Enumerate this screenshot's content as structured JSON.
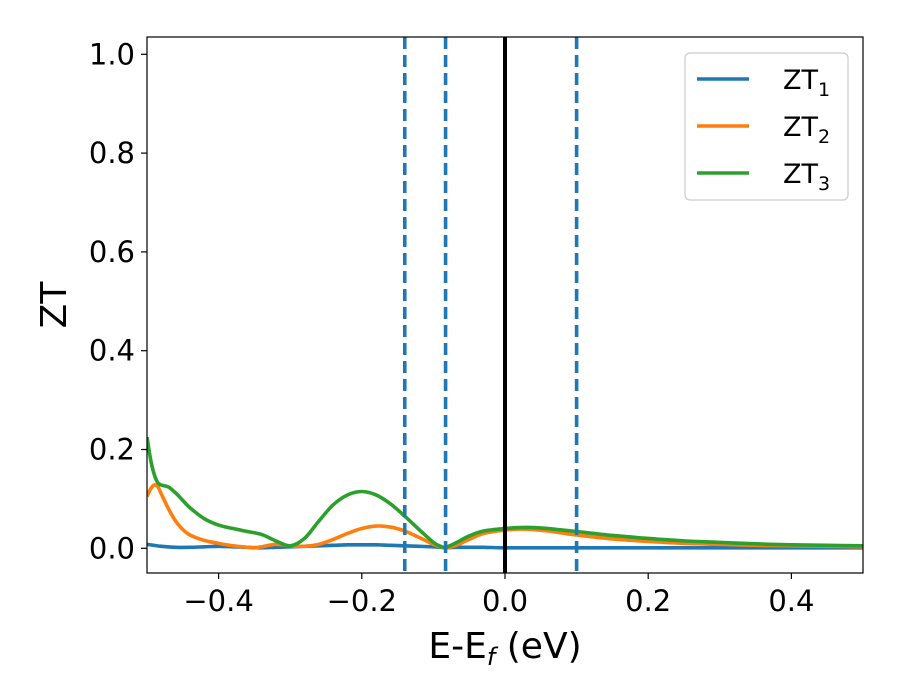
{
  "chart_data": {
    "type": "line",
    "xlabel": "E-E",
    "xlabel_sub": "f",
    "xlabel_unit": " (eV)",
    "ylabel": "ZT",
    "xlim": [
      -0.5,
      0.5
    ],
    "ylim": [
      -0.05,
      1.035
    ],
    "xticks": [
      -0.4,
      -0.2,
      0.0,
      0.2,
      0.4
    ],
    "xtick_labels": [
      "−0.4",
      "−0.2",
      "0.0",
      "0.2",
      "0.4"
    ],
    "yticks": [
      0.0,
      0.2,
      0.4,
      0.6,
      0.8,
      1.0
    ],
    "ytick_labels": [
      "0.0",
      "0.2",
      "0.4",
      "0.6",
      "0.8",
      "1.0"
    ],
    "grid": false,
    "legend_position": "top-right",
    "vlines": [
      {
        "x": -0.14,
        "style": "dashed",
        "color": "#1f77b4"
      },
      {
        "x": -0.083,
        "style": "dashed",
        "color": "#1f77b4"
      },
      {
        "x": 0.0,
        "style": "solid",
        "color": "#000000"
      },
      {
        "x": 0.1,
        "style": "dashed",
        "color": "#1f77b4"
      }
    ],
    "series": [
      {
        "name": "ZT",
        "sub": "1",
        "color": "#1f77b4",
        "x": [
          -0.5,
          -0.48,
          -0.46,
          -0.44,
          -0.42,
          -0.4,
          -0.38,
          -0.36,
          -0.34,
          -0.32,
          -0.3,
          -0.28,
          -0.26,
          -0.24,
          -0.22,
          -0.2,
          -0.18,
          -0.16,
          -0.14,
          -0.12,
          -0.1,
          -0.09,
          -0.083,
          -0.07,
          -0.05,
          -0.03,
          0.0,
          0.05,
          0.1,
          0.2,
          0.3,
          0.4,
          0.5
        ],
        "y": [
          0.008,
          0.004,
          0.002,
          0.002,
          0.003,
          0.004,
          0.003,
          0.002,
          0.001,
          0.002,
          0.003,
          0.004,
          0.005,
          0.006,
          0.007,
          0.007,
          0.007,
          0.006,
          0.005,
          0.004,
          0.003,
          0.002,
          0.001,
          0.002,
          0.002,
          0.002,
          0.001,
          0.001,
          0.001,
          0.001,
          0.001,
          0.001,
          0.001
        ]
      },
      {
        "name": "ZT",
        "sub": "2",
        "color": "#ff7f0e",
        "x": [
          -0.5,
          -0.495,
          -0.49,
          -0.485,
          -0.48,
          -0.47,
          -0.46,
          -0.45,
          -0.44,
          -0.42,
          -0.4,
          -0.38,
          -0.36,
          -0.35,
          -0.34,
          -0.32,
          -0.3,
          -0.28,
          -0.26,
          -0.24,
          -0.22,
          -0.2,
          -0.18,
          -0.16,
          -0.14,
          -0.12,
          -0.1,
          -0.09,
          -0.083,
          -0.07,
          -0.05,
          -0.03,
          0.0,
          0.02,
          0.04,
          0.06,
          0.08,
          0.1,
          0.15,
          0.2,
          0.25,
          0.3,
          0.35,
          0.4,
          0.45,
          0.5
        ],
        "y": [
          0.105,
          0.12,
          0.128,
          0.125,
          0.11,
          0.08,
          0.055,
          0.038,
          0.027,
          0.016,
          0.01,
          0.005,
          0.002,
          0.001,
          0.003,
          0.008,
          0.005,
          0.004,
          0.008,
          0.018,
          0.03,
          0.04,
          0.045,
          0.043,
          0.035,
          0.022,
          0.008,
          0.003,
          0.001,
          0.005,
          0.018,
          0.03,
          0.037,
          0.039,
          0.038,
          0.035,
          0.031,
          0.027,
          0.019,
          0.014,
          0.01,
          0.008,
          0.006,
          0.005,
          0.004,
          0.003
        ]
      },
      {
        "name": "ZT",
        "sub": "3",
        "color": "#2ca02c",
        "x": [
          -0.5,
          -0.495,
          -0.49,
          -0.485,
          -0.48,
          -0.47,
          -0.46,
          -0.45,
          -0.44,
          -0.42,
          -0.4,
          -0.38,
          -0.36,
          -0.34,
          -0.32,
          -0.3,
          -0.28,
          -0.26,
          -0.24,
          -0.22,
          -0.2,
          -0.18,
          -0.16,
          -0.14,
          -0.12,
          -0.1,
          -0.09,
          -0.083,
          -0.07,
          -0.05,
          -0.03,
          0.0,
          0.02,
          0.04,
          0.06,
          0.08,
          0.1,
          0.15,
          0.2,
          0.25,
          0.3,
          0.35,
          0.4,
          0.45,
          0.5
        ],
        "y": [
          0.225,
          0.18,
          0.15,
          0.133,
          0.128,
          0.124,
          0.112,
          0.097,
          0.082,
          0.06,
          0.047,
          0.04,
          0.034,
          0.028,
          0.015,
          0.005,
          0.02,
          0.055,
          0.088,
          0.108,
          0.115,
          0.108,
          0.09,
          0.065,
          0.038,
          0.012,
          0.004,
          0.002,
          0.01,
          0.025,
          0.035,
          0.04,
          0.042,
          0.042,
          0.04,
          0.037,
          0.034,
          0.026,
          0.02,
          0.015,
          0.012,
          0.009,
          0.007,
          0.006,
          0.005
        ]
      }
    ]
  }
}
